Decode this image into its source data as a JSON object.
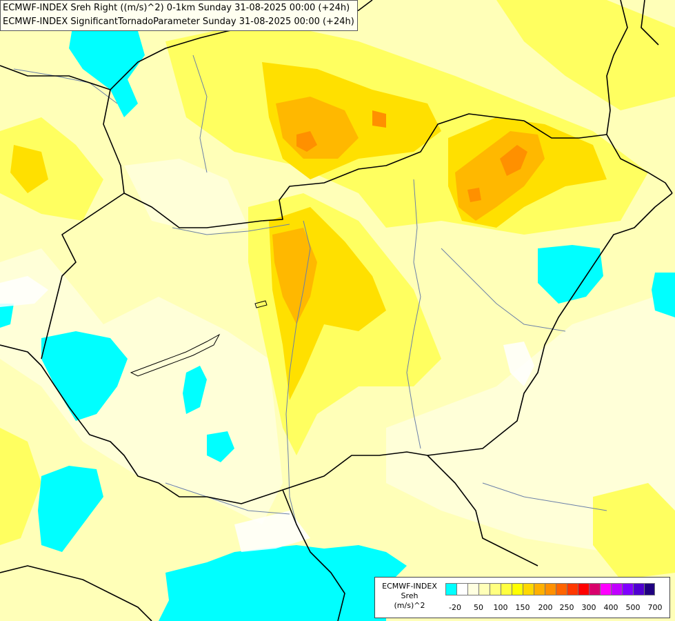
{
  "title": {
    "line1": "ECMWF-INDEX Sreh Right ((m/s)^2) 0-1km Sunday 31-08-2025 00:00 (+24h)",
    "line2": "ECMWF-INDEX SignificantTornadoParameter Sunday 31-08-2025 00:00 (+24h)"
  },
  "legend": {
    "source": "ECMWF-INDEX",
    "variable": "Sreh",
    "unit": "(m/s)^2",
    "colors": [
      "#00ffff",
      "#ffffff",
      "#ffffe0",
      "#ffffb8",
      "#ffff80",
      "#ffff40",
      "#ffff00",
      "#ffd800",
      "#ffb000",
      "#ff9000",
      "#ff6400",
      "#ff3800",
      "#ff0000",
      "#d8006c",
      "#ff00ff",
      "#c000ff",
      "#8000ff",
      "#5000d0",
      "#200080"
    ],
    "ticks": [
      "-20",
      "50",
      "100",
      "150",
      "200",
      "250",
      "300",
      "400",
      "500",
      "700"
    ]
  },
  "palette": {
    "background": "#ffffc0",
    "negative": "#00ffff",
    "border": "#000000",
    "river": "#6a7fa8"
  }
}
